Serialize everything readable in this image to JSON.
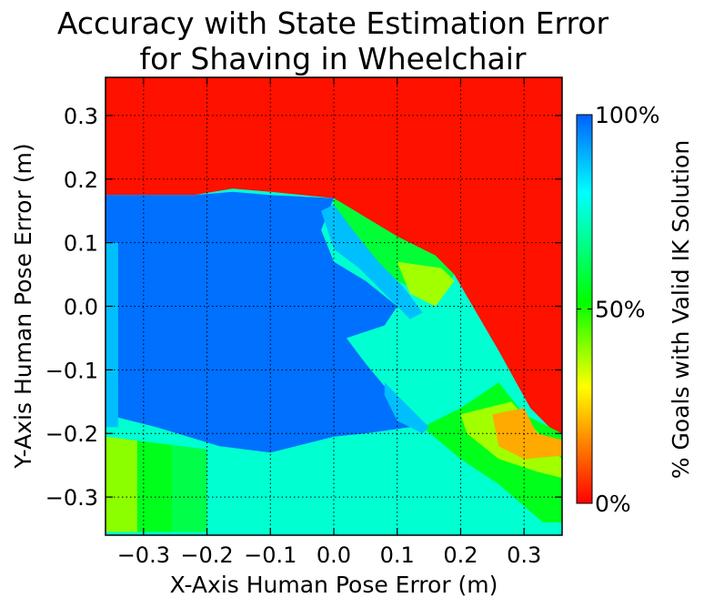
{
  "chart_data": {
    "type": "heatmap",
    "title": [
      "Accuracy with State Estimation Error",
      "for Shaving in Wheelchair"
    ],
    "xlabel": "X-Axis Human Pose Error (m)",
    "ylabel": "Y-Axis Human Pose Error (m)",
    "xlim": [
      -0.36,
      0.36
    ],
    "ylim": [
      -0.36,
      0.36
    ],
    "grid": true,
    "x_ticks": [
      -0.3,
      -0.2,
      -0.1,
      0.0,
      0.1,
      0.2,
      0.3
    ],
    "x_tick_labels": [
      "−0.3",
      "−0.2",
      "−0.1",
      "0.0",
      "0.1",
      "0.2",
      "0.3"
    ],
    "y_ticks": [
      0.3,
      0.2,
      0.1,
      0.0,
      -0.1,
      -0.2,
      -0.3
    ],
    "y_tick_labels": [
      "0.3",
      "0.2",
      "0.1",
      "0.0",
      "−0.1",
      "−0.2",
      "−0.3"
    ],
    "value_unit": "% Goals with Valid IK Solution",
    "colorbar": {
      "label": "% Goals with Valid IK Solution",
      "min": 0,
      "max": 100,
      "ticks": [
        100,
        50,
        0
      ],
      "tick_labels": [
        "100%",
        "50%",
        "0%"
      ],
      "colormap": [
        "#ff0000",
        "#ffff00",
        "#00ff00",
        "#00ffff",
        "#0060ff"
      ]
    },
    "regions": [
      {
        "name": "upper-invalid-region",
        "value": 2,
        "points": [
          [
            -0.36,
            0.36
          ],
          [
            0.36,
            0.36
          ],
          [
            0.36,
            -0.21
          ],
          [
            0.31,
            -0.16
          ],
          [
            0.26,
            -0.07
          ],
          [
            0.19,
            0.05
          ],
          [
            0.16,
            0.08
          ],
          [
            0.1,
            0.11
          ],
          [
            0.05,
            0.14
          ],
          [
            0.0,
            0.17
          ],
          [
            -0.1,
            0.18
          ],
          [
            -0.16,
            0.185
          ],
          [
            -0.22,
            0.175
          ],
          [
            -0.36,
            0.175
          ]
        ]
      },
      {
        "name": "lower-left-yellow",
        "value": 40,
        "points": [
          [
            -0.36,
            -0.205
          ],
          [
            -0.31,
            -0.205
          ],
          [
            -0.31,
            -0.355
          ],
          [
            -0.36,
            -0.355
          ]
        ]
      },
      {
        "name": "lower-left-green",
        "value": 55,
        "points": [
          [
            -0.31,
            -0.205
          ],
          [
            -0.255,
            -0.215
          ],
          [
            -0.255,
            -0.355
          ],
          [
            -0.31,
            -0.355
          ]
        ]
      },
      {
        "name": "lower-left-bright-green",
        "value": 60,
        "points": [
          [
            -0.255,
            -0.215
          ],
          [
            -0.2,
            -0.225
          ],
          [
            -0.2,
            -0.355
          ],
          [
            -0.255,
            -0.355
          ]
        ]
      },
      {
        "name": "main-teal-region",
        "value": 75,
        "points": [
          [
            -0.36,
            0.1
          ],
          [
            -0.36,
            -0.205
          ],
          [
            -0.2,
            -0.225
          ],
          [
            -0.2,
            -0.355
          ],
          [
            0.3,
            -0.355
          ],
          [
            0.23,
            -0.3
          ],
          [
            0.17,
            -0.23
          ],
          [
            0.14,
            -0.19
          ],
          [
            0.2,
            -0.16
          ],
          [
            0.26,
            -0.12
          ],
          [
            0.24,
            -0.07
          ],
          [
            0.18,
            0.0
          ],
          [
            0.12,
            0.05
          ],
          [
            0.05,
            0.1
          ],
          [
            0.0,
            0.1
          ],
          [
            -0.1,
            0.05
          ],
          [
            -0.2,
            0.0
          ]
        ]
      },
      {
        "name": "right-green-band",
        "value": 58,
        "points": [
          [
            0.0,
            0.17
          ],
          [
            0.1,
            0.11
          ],
          [
            0.16,
            0.08
          ],
          [
            0.19,
            0.05
          ],
          [
            0.16,
            0.01
          ],
          [
            0.1,
            0.04
          ],
          [
            0.05,
            0.07
          ],
          [
            0.0,
            0.12
          ]
        ]
      },
      {
        "name": "right-yellow-patch",
        "value": 38,
        "points": [
          [
            0.1,
            0.07
          ],
          [
            0.17,
            0.06
          ],
          [
            0.19,
            0.04
          ],
          [
            0.16,
            0.0
          ],
          [
            0.12,
            0.02
          ]
        ]
      },
      {
        "name": "right-lower-green-band",
        "value": 55,
        "points": [
          [
            0.14,
            -0.19
          ],
          [
            0.2,
            -0.16
          ],
          [
            0.26,
            -0.12
          ],
          [
            0.3,
            -0.17
          ],
          [
            0.36,
            -0.2
          ],
          [
            0.36,
            -0.34
          ],
          [
            0.33,
            -0.34
          ],
          [
            0.26,
            -0.28
          ],
          [
            0.2,
            -0.24
          ]
        ]
      },
      {
        "name": "right-yellow-strip",
        "value": 38,
        "points": [
          [
            0.2,
            -0.17
          ],
          [
            0.28,
            -0.15
          ],
          [
            0.34,
            -0.22
          ],
          [
            0.36,
            -0.24
          ],
          [
            0.36,
            -0.27
          ],
          [
            0.32,
            -0.26
          ],
          [
            0.26,
            -0.24
          ],
          [
            0.21,
            -0.2
          ]
        ]
      },
      {
        "name": "orange-patch",
        "value": 20,
        "points": [
          [
            0.25,
            -0.17
          ],
          [
            0.3,
            -0.16
          ],
          [
            0.32,
            -0.2
          ],
          [
            0.36,
            -0.21
          ],
          [
            0.36,
            -0.235
          ],
          [
            0.3,
            -0.24
          ],
          [
            0.26,
            -0.22
          ]
        ]
      },
      {
        "name": "blue-core-region",
        "value": 98,
        "points": [
          [
            -0.36,
            0.175
          ],
          [
            -0.22,
            0.175
          ],
          [
            -0.16,
            0.18
          ],
          [
            -0.1,
            0.175
          ],
          [
            0.0,
            0.17
          ],
          [
            -0.02,
            0.12
          ],
          [
            0.0,
            0.07
          ],
          [
            0.05,
            0.04
          ],
          [
            0.1,
            0.0
          ],
          [
            0.08,
            -0.03
          ],
          [
            0.02,
            -0.05
          ],
          [
            0.05,
            -0.09
          ],
          [
            0.1,
            -0.15
          ],
          [
            0.12,
            -0.19
          ],
          [
            0.05,
            -0.2
          ],
          [
            0.0,
            -0.205
          ],
          [
            -0.1,
            -0.23
          ],
          [
            -0.18,
            -0.22
          ],
          [
            -0.28,
            -0.19
          ],
          [
            -0.36,
            -0.17
          ]
        ]
      },
      {
        "name": "cyan-fringe-left",
        "value": 88,
        "points": [
          [
            -0.36,
            0.1
          ],
          [
            -0.34,
            0.1
          ],
          [
            -0.34,
            -0.19
          ],
          [
            -0.36,
            -0.19
          ]
        ]
      },
      {
        "name": "cyan-fringe-diagonal",
        "value": 88,
        "points": [
          [
            -0.02,
            0.15
          ],
          [
            0.0,
            0.16
          ],
          [
            0.03,
            0.12
          ],
          [
            0.07,
            0.07
          ],
          [
            0.11,
            0.03
          ],
          [
            0.14,
            -0.01
          ],
          [
            0.12,
            -0.02
          ],
          [
            0.08,
            0.02
          ],
          [
            0.04,
            0.06
          ],
          [
            0.0,
            0.09
          ]
        ]
      },
      {
        "name": "cyan-fringe-lower",
        "value": 88,
        "points": [
          [
            0.08,
            -0.12
          ],
          [
            0.11,
            -0.15
          ],
          [
            0.15,
            -0.19
          ],
          [
            0.14,
            -0.2
          ],
          [
            0.1,
            -0.18
          ],
          [
            0.08,
            -0.14
          ]
        ]
      }
    ]
  }
}
